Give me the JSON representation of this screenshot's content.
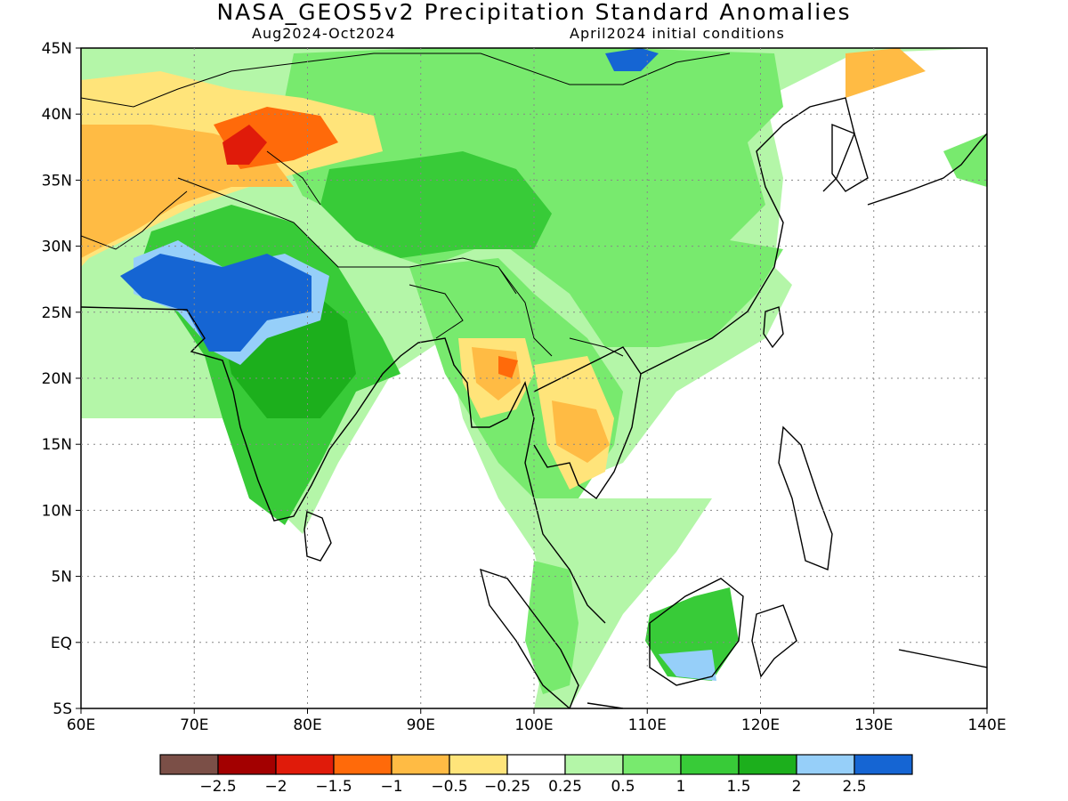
{
  "header": {
    "title": "NASA_GEOS5v2 Precipitation Standard Anomalies",
    "valid_period": "Aug2024-Oct2024",
    "initial_conditions": "April2024 initial conditions"
  },
  "map": {
    "lon_range": [
      60,
      140
    ],
    "lat_range": [
      -5,
      45
    ],
    "x_ticks": [
      "60E",
      "70E",
      "80E",
      "90E",
      "100E",
      "110E",
      "120E",
      "130E",
      "140E"
    ],
    "y_ticks": [
      "5S",
      "EQ",
      "5N",
      "10N",
      "15N",
      "20N",
      "25N",
      "30N",
      "35N",
      "40N",
      "45N"
    ],
    "grid": "dotted"
  },
  "colorbar": {
    "colors": [
      "#7b4f47",
      "#a30000",
      "#e01b0a",
      "#ff6a0a",
      "#ffbb44",
      "#ffe47a",
      "#ffffff",
      "#b4f6a8",
      "#78ea6e",
      "#38cb38",
      "#1caf1c",
      "#96cff9",
      "#1565d3"
    ],
    "labels": [
      "-2.5",
      "-2",
      "-1.5",
      "-1",
      "-0.5",
      "-0.25",
      "0.25",
      "0.5",
      "1",
      "1.5",
      "2",
      "2.5"
    ]
  }
}
